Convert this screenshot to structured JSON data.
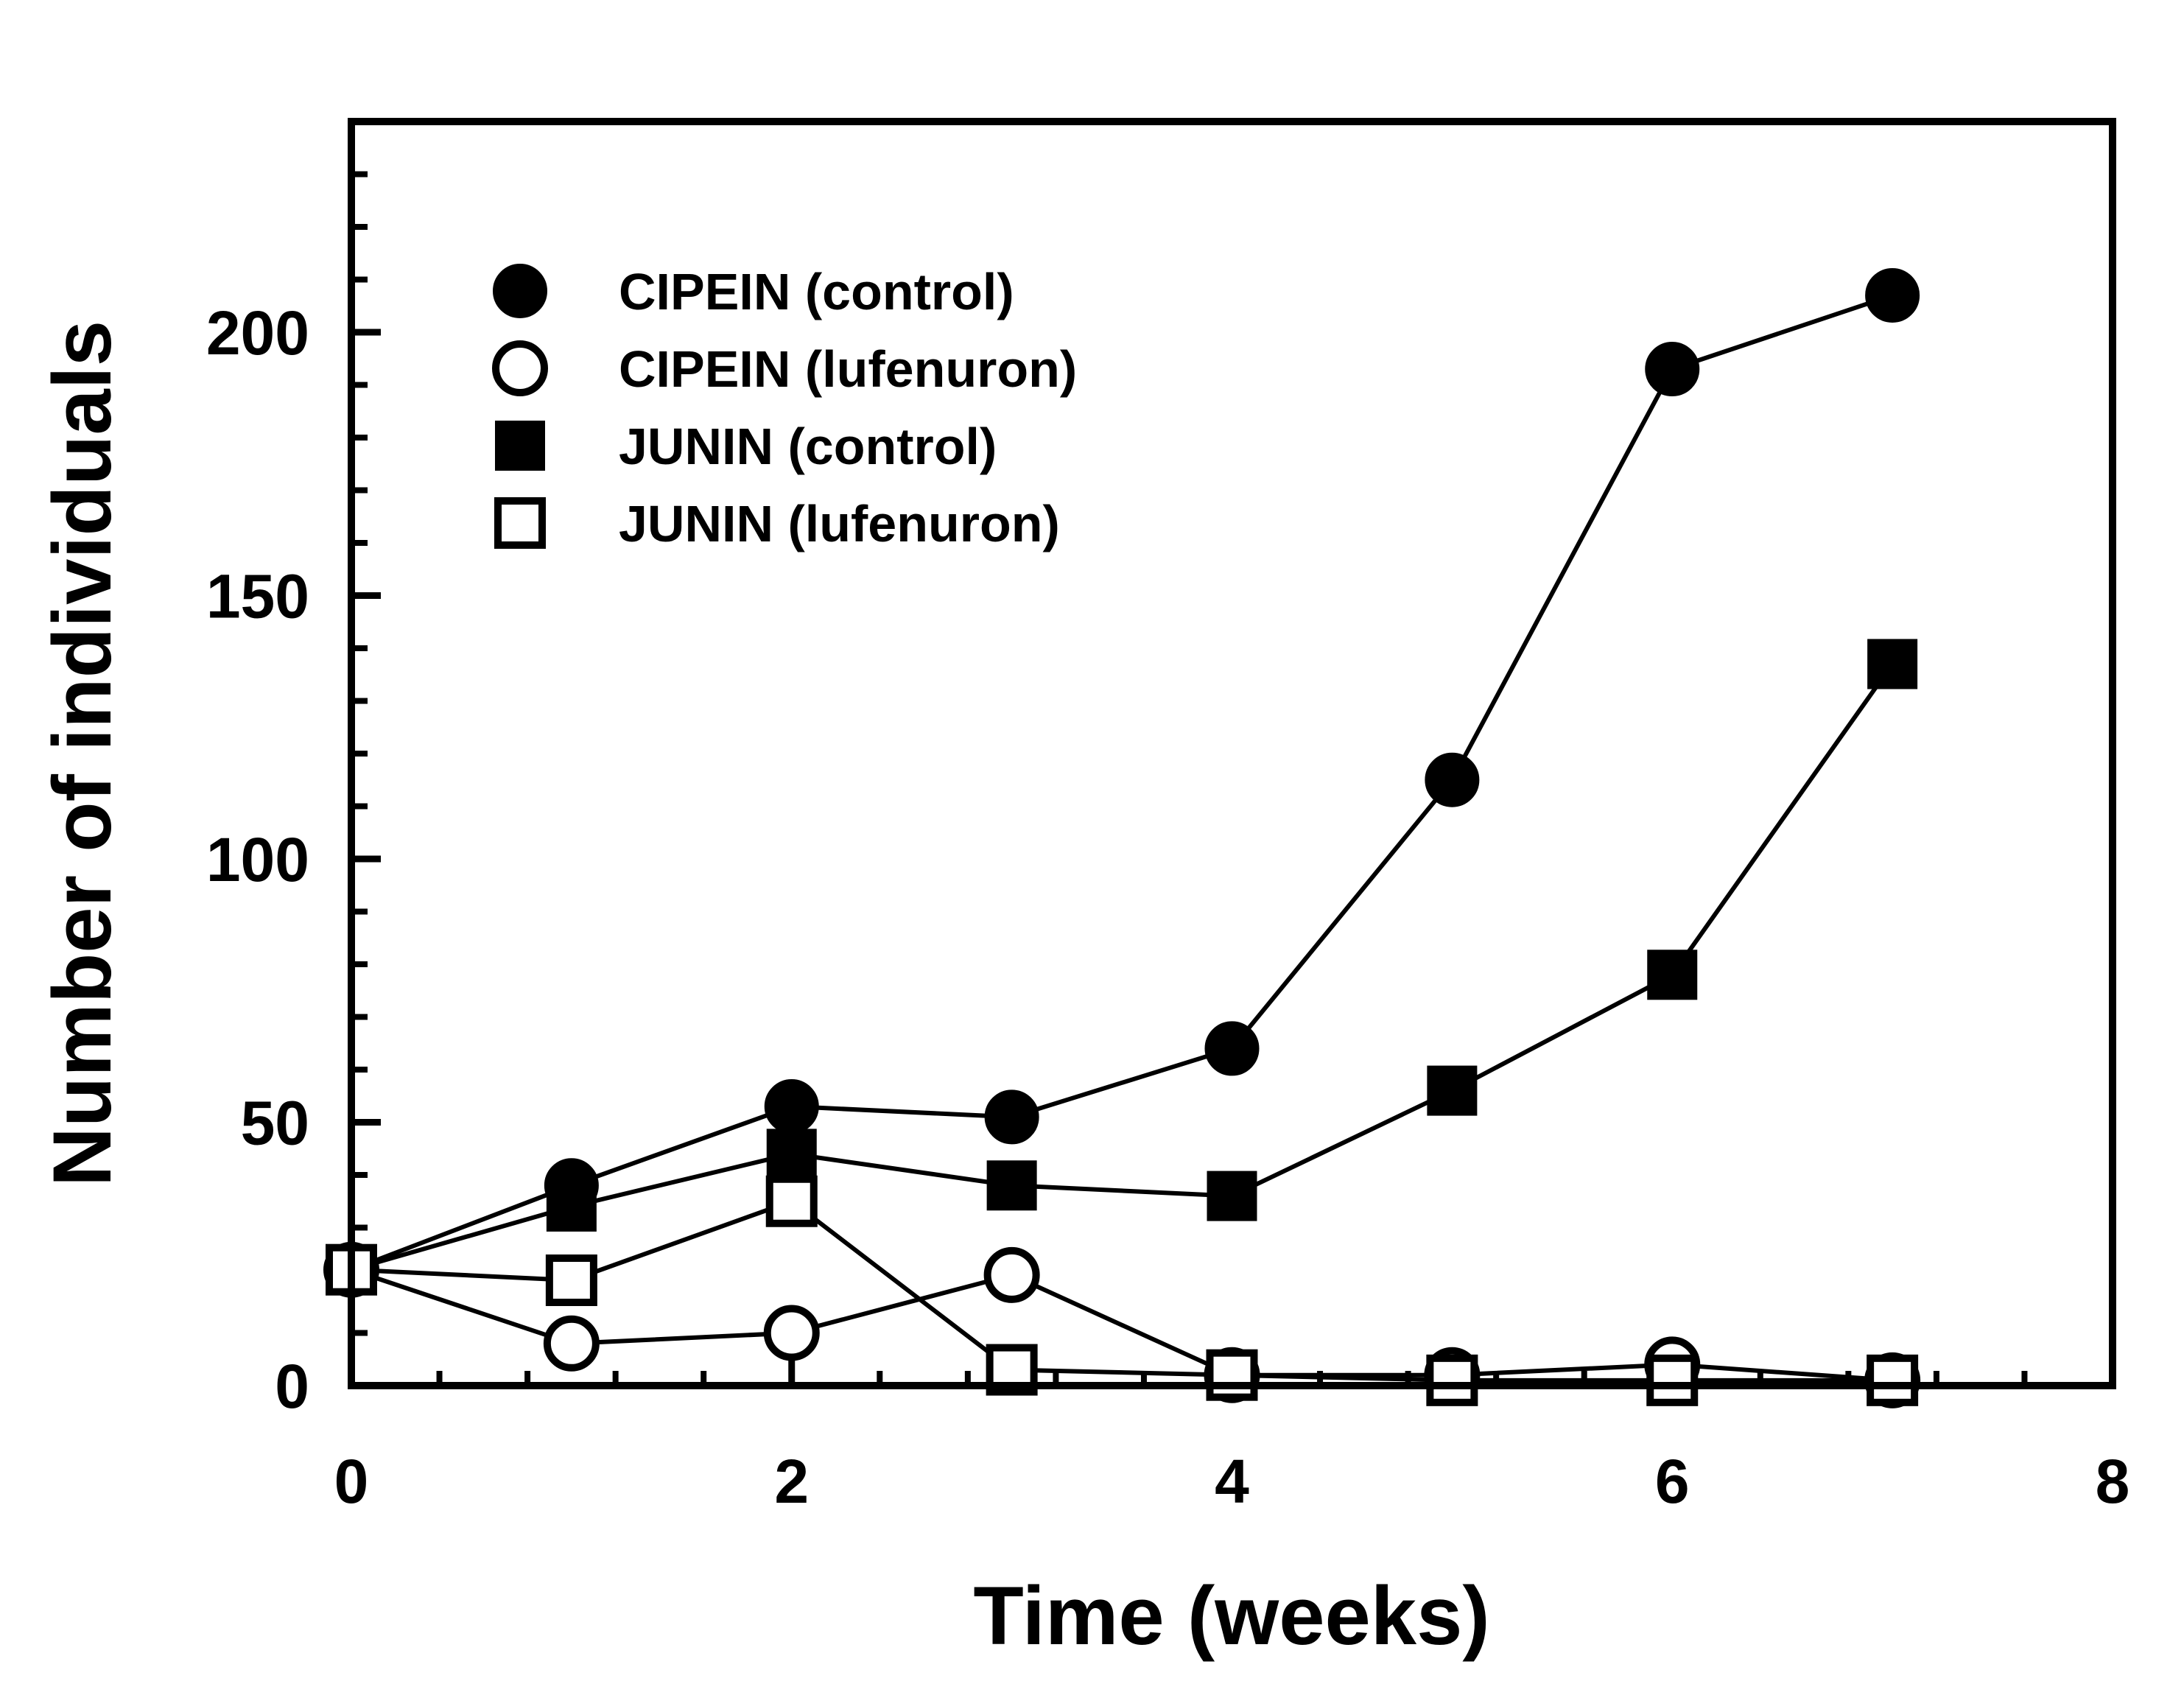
{
  "chart_data": {
    "type": "line",
    "title": "",
    "xlabel": "Time (weeks)",
    "ylabel": "Number of individuals",
    "xlim": [
      0,
      8
    ],
    "ylim": [
      0,
      240
    ],
    "x_ticks": [
      0,
      2,
      4,
      6,
      8
    ],
    "x_tick_labels": [
      "0",
      "2",
      "4",
      "6",
      "8"
    ],
    "y_ticks": [
      0,
      50,
      100,
      150,
      200
    ],
    "y_tick_labels": [
      "0",
      "50",
      "100",
      "150",
      "200"
    ],
    "grid": false,
    "legend_position": "top-left",
    "colors": {
      "line": "#000000",
      "fill": "#000000",
      "open_fill": "#ffffff",
      "background": "#ffffff"
    },
    "series": [
      {
        "name": "CIPEIN (control)",
        "marker": "filled-circle",
        "x": [
          0,
          1,
          2,
          3,
          4,
          5,
          6,
          7
        ],
        "values": [
          22,
          38,
          53,
          51,
          64,
          115,
          193,
          207
        ]
      },
      {
        "name": "CIPEIN (lufenuron)",
        "marker": "open-circle",
        "x": [
          0,
          1,
          2,
          3,
          4,
          5,
          6,
          7
        ],
        "values": [
          22,
          8,
          10,
          21,
          2,
          2,
          4,
          1
        ]
      },
      {
        "name": "JUNIN (control)",
        "marker": "filled-square",
        "x": [
          0,
          1,
          2,
          3,
          4,
          5,
          6,
          7
        ],
        "values": [
          22,
          34,
          44,
          38,
          36,
          56,
          78,
          137
        ]
      },
      {
        "name": "JUNIN (lufenuron)",
        "marker": "open-square",
        "x": [
          0,
          1,
          2,
          3,
          4,
          5,
          6,
          7
        ],
        "values": [
          22,
          20,
          35,
          3,
          2,
          1,
          1,
          1
        ]
      }
    ]
  }
}
